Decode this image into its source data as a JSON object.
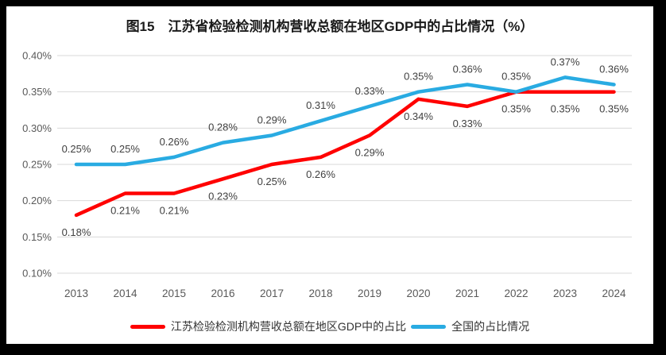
{
  "frame": {
    "background": "#000000",
    "chart_background": "#FFFFFF"
  },
  "chart_data": {
    "type": "line",
    "title": "图15　江苏省检验检测机构营收总额在地区GDP中的占比情况（%）",
    "categories": [
      "2013",
      "2014",
      "2015",
      "2016",
      "2017",
      "2018",
      "2019",
      "2020",
      "2021",
      "2022",
      "2023",
      "2024"
    ],
    "series": [
      {
        "name": "江苏检验检测机构营收总额在地区GDP中的占比",
        "color": "#FF0000",
        "values": [
          0.18,
          0.21,
          0.21,
          0.23,
          0.25,
          0.26,
          0.29,
          0.34,
          0.33,
          0.35,
          0.35,
          0.35
        ],
        "point_labels": [
          "0.18%",
          "0.21%",
          "0.21%",
          "0.23%",
          "0.25%",
          "0.26%",
          "0.29%",
          "0.34%",
          "0.33%",
          "0.35%",
          "0.35%",
          "0.35%"
        ],
        "label_position": "below"
      },
      {
        "name": "全国的占比情况",
        "color": "#29ABE2",
        "values": [
          0.25,
          0.25,
          0.26,
          0.28,
          0.29,
          0.31,
          0.33,
          0.35,
          0.36,
          0.35,
          0.37,
          0.36
        ],
        "point_labels": [
          "0.25%",
          "0.25%",
          "0.26%",
          "0.28%",
          "0.29%",
          "0.31%",
          "0.33%",
          "0.35%",
          "0.36%",
          "0.35%",
          "0.37%",
          "0.36%"
        ],
        "label_position": "above"
      }
    ],
    "y_axis": {
      "min": 0.1,
      "max": 0.4,
      "step": 0.05,
      "tick_labels": [
        "0.40%",
        "0.35%",
        "0.30%",
        "0.25%",
        "0.20%",
        "0.15%",
        "0.10%"
      ]
    },
    "grid": true,
    "legend_position": "bottom",
    "colors": {
      "gridline": "#D9D9D9",
      "axis_text": "#595959",
      "data_label_text": "#404040",
      "title_text": "#1A1A1A"
    }
  }
}
